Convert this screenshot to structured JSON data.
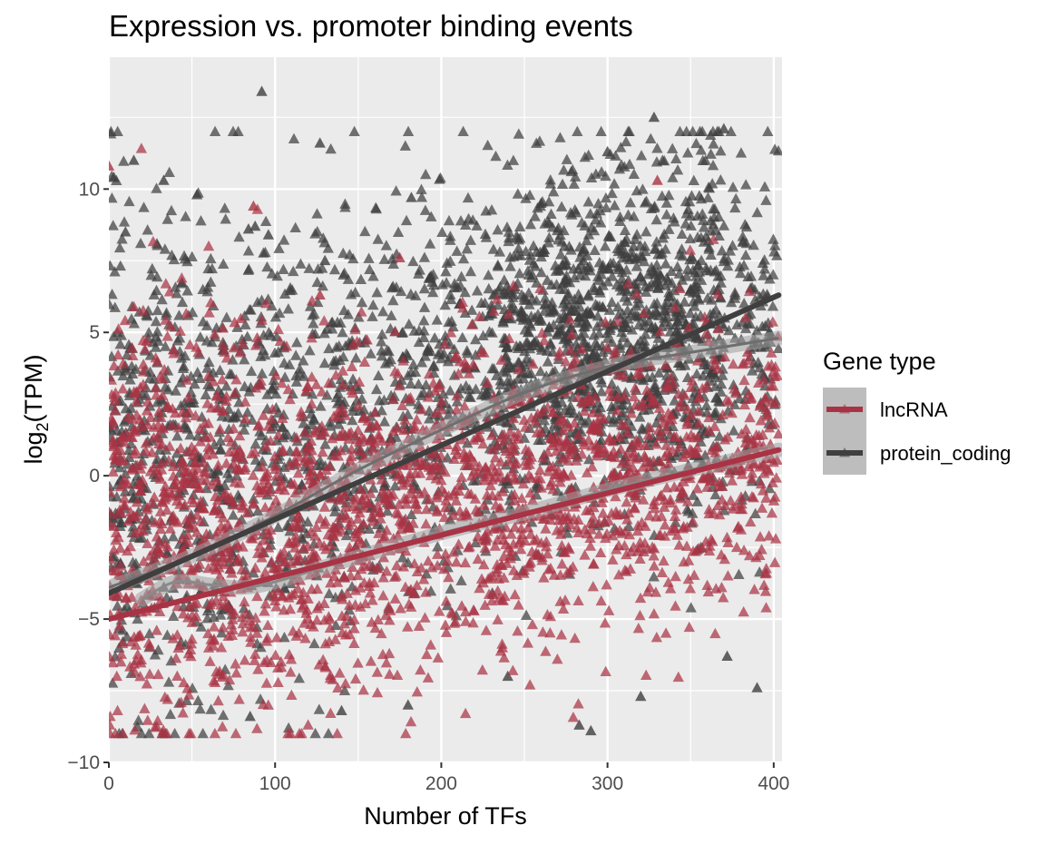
{
  "chart_data": {
    "type": "scatter",
    "title": "Expression vs. promoter binding events",
    "xlabel": "Number of TFs",
    "ylabel_main": "log",
    "ylabel_sub": "2",
    "ylabel_rest": "(TPM)",
    "xlim": [
      0,
      405
    ],
    "ylim": [
      -10,
      14.6
    ],
    "x_ticks": [
      0,
      100,
      200,
      300,
      400
    ],
    "x_tick_labels": [
      "0",
      "100",
      "200",
      "300",
      "400"
    ],
    "y_ticks": [
      -10,
      -5,
      0,
      5,
      10
    ],
    "y_tick_labels": [
      "−10",
      "−5",
      "0",
      "5",
      "10"
    ],
    "grid": true,
    "panel_background": "#ebebeb",
    "legend": {
      "title": "Gene type",
      "placement": "right",
      "entries": [
        "lncRNA",
        "protein_coding"
      ]
    },
    "series": [
      {
        "name": "lncRNA",
        "color": "#a93344",
        "marker": "triangle",
        "trend_linear": {
          "x": [
            0,
            403
          ],
          "y": [
            -5.0,
            0.9
          ]
        },
        "trend_loess": {
          "x": [
            20,
            40,
            60,
            80,
            100,
            140,
            200,
            250,
            300,
            350,
            403
          ],
          "y": [
            -4.3,
            -3.7,
            -3.8,
            -3.9,
            -3.7,
            -3.0,
            -2.0,
            -1.3,
            -0.5,
            0.2,
            0.9
          ]
        },
        "cloud": [
          [
            0,
            -1.0,
            4.5
          ],
          [
            40,
            -1.5,
            3.8
          ],
          [
            100,
            -2.0,
            3.2
          ],
          [
            200,
            -1.2,
            2.8
          ],
          [
            300,
            -0.2,
            2.6
          ],
          [
            400,
            0.8,
            2.5
          ]
        ],
        "outliers": [
          [
            0,
            10.8
          ],
          [
            87,
            9.4
          ],
          [
            127,
            6.3
          ],
          [
            175,
            7.6
          ],
          [
            330,
            10.3
          ]
        ]
      },
      {
        "name": "protein_coding",
        "color": "#3f3f3f",
        "marker": "triangle",
        "trend_linear": {
          "x": [
            0,
            403
          ],
          "y": [
            -4.1,
            6.3
          ]
        },
        "trend_loess": {
          "x": [
            0,
            50,
            100,
            150,
            200,
            250,
            300,
            350,
            403
          ],
          "y": [
            -3.9,
            -2.8,
            -1.4,
            0.2,
            1.6,
            2.9,
            3.8,
            4.3,
            4.8
          ]
        },
        "cloud": [
          [
            0,
            0.5,
            4.8
          ],
          [
            40,
            0.5,
            4.5
          ],
          [
            100,
            1.5,
            3.8
          ],
          [
            150,
            2.5,
            3.5
          ],
          [
            200,
            3.5,
            3.2
          ],
          [
            260,
            4.6,
            3.0
          ],
          [
            320,
            5.2,
            3.0
          ],
          [
            400,
            5.3,
            3.2
          ]
        ],
        "outliers": [
          [
            92,
            13.4
          ],
          [
            127,
            11.6
          ],
          [
            328,
            12.5
          ],
          [
            370,
            12.1
          ],
          [
            15,
            11.0
          ],
          [
            33,
            10.3
          ],
          [
            53,
            9.8
          ],
          [
            182,
            9.7
          ],
          [
            84,
            8.6
          ],
          [
            88,
            8.7
          ],
          [
            96,
            8.4
          ],
          [
            130,
            7.5
          ],
          [
            260,
            9.5
          ],
          [
            300,
            11.3
          ],
          [
            290,
            -8.9
          ],
          [
            283,
            -8.7
          ],
          [
            390,
            -7.4
          ],
          [
            85,
            -8.4
          ],
          [
            180,
            -8.0
          ],
          [
            320,
            -7.7
          ],
          [
            372,
            -6.3
          ],
          [
            10,
            8.5
          ],
          [
            3,
            10.4
          ],
          [
            140,
            -8.2
          ],
          [
            240,
            -7.0
          ]
        ]
      }
    ]
  }
}
